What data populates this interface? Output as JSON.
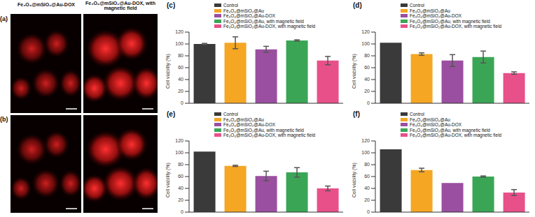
{
  "image_panels": {
    "labels": [
      "(a)",
      "(b)"
    ],
    "columns": [
      "Fe₃O₄@mSiO₂@Au-DOX",
      "Fe₃O₄@mSiO₂@Au-DOX, with magnetic field"
    ]
  },
  "chart_data": [
    {
      "type": "bar",
      "title": "(c)",
      "ylabel": "Cell viability (%)",
      "categories": [
        "Control",
        "Fe₃O₄@mSiO₂@Au",
        "Fe₃O₄@mSiO₂@Au-DOX",
        "Fe₃O₄@mSiO₂@Au, with magnetic field",
        "Fe₃O₄@mSiO₂@Au-DOX, with magnetic field"
      ],
      "values": [
        100,
        102,
        91,
        106,
        72
      ],
      "errors": [
        1,
        10,
        5,
        1,
        7
      ],
      "colors": [
        "#3a3a3a",
        "#f5a623",
        "#9a4fa0",
        "#3aa655",
        "#e8508a"
      ],
      "ylim": [
        0,
        120
      ],
      "yticks": [
        0,
        20,
        40,
        60,
        80,
        100,
        120
      ],
      "legend": "top",
      "tick_labels": "y"
    },
    {
      "type": "bar",
      "title": "(d)",
      "ylabel": "Cell viability (%)",
      "categories": [
        "Control",
        "Fe₃O₄@mSiO₂@Au",
        "Fe₃O₄@mSiO₂@Au-DOX",
        "Fe₃O₄@mSiO₂@Au, with magnetic field",
        "Fe₃O₄@mSiO₂@Au-DOX, with magnetic field"
      ],
      "values": [
        102,
        83,
        72,
        78,
        51
      ],
      "errors": [
        0,
        2,
        10,
        10,
        2
      ],
      "colors": [
        "#3a3a3a",
        "#f5a623",
        "#9a4fa0",
        "#3aa655",
        "#e8508a"
      ],
      "ylim": [
        0,
        120
      ],
      "yticks": [
        0,
        20,
        40,
        60,
        80,
        100,
        120
      ],
      "legend": "top",
      "tick_labels": "y"
    },
    {
      "type": "bar",
      "title": "(e)",
      "ylabel": "Cell viability (%)",
      "categories": [
        "Control",
        "Fe₃O₄@mSiO₂@Au",
        "Fe₃O₄@mSiO₂@Au-DOX",
        "Fe₃O₄@mSiO₂@Au, with magnetic field",
        "Fe₃O₄@mSiO₂@Au-DOX, with magnetic field"
      ],
      "values": [
        102,
        78,
        61,
        67,
        40
      ],
      "errors": [
        0,
        1,
        8,
        8,
        4
      ],
      "colors": [
        "#3a3a3a",
        "#f5a623",
        "#9a4fa0",
        "#3aa655",
        "#e8508a"
      ],
      "ylim": [
        0,
        120
      ],
      "yticks": [
        0,
        20,
        40,
        60,
        80,
        100,
        120
      ],
      "legend": "top",
      "tick_labels": "y"
    },
    {
      "type": "bar",
      "title": "(f)",
      "ylabel": "Cell viability (%)",
      "categories": [
        "Control",
        "Fe₃O₄@mSiO₂@Au",
        "Fe₃O₄@mSiO₂@Au-DOX",
        "Fe₃O₄@mSiO₂@Au, with magnetic field",
        "Fe₃O₄@mSiO₂@Au-DOX, with magnetic field"
      ],
      "values": [
        106,
        71,
        49,
        60,
        33
      ],
      "errors": [
        0,
        3,
        0,
        1,
        5
      ],
      "colors": [
        "#3a3a3a",
        "#f5a623",
        "#9a4fa0",
        "#3aa655",
        "#e8508a"
      ],
      "ylim": [
        0,
        120
      ],
      "yticks": [
        0,
        20,
        40,
        60,
        80,
        100,
        120
      ],
      "legend": "top",
      "tick_labels": "y"
    }
  ]
}
